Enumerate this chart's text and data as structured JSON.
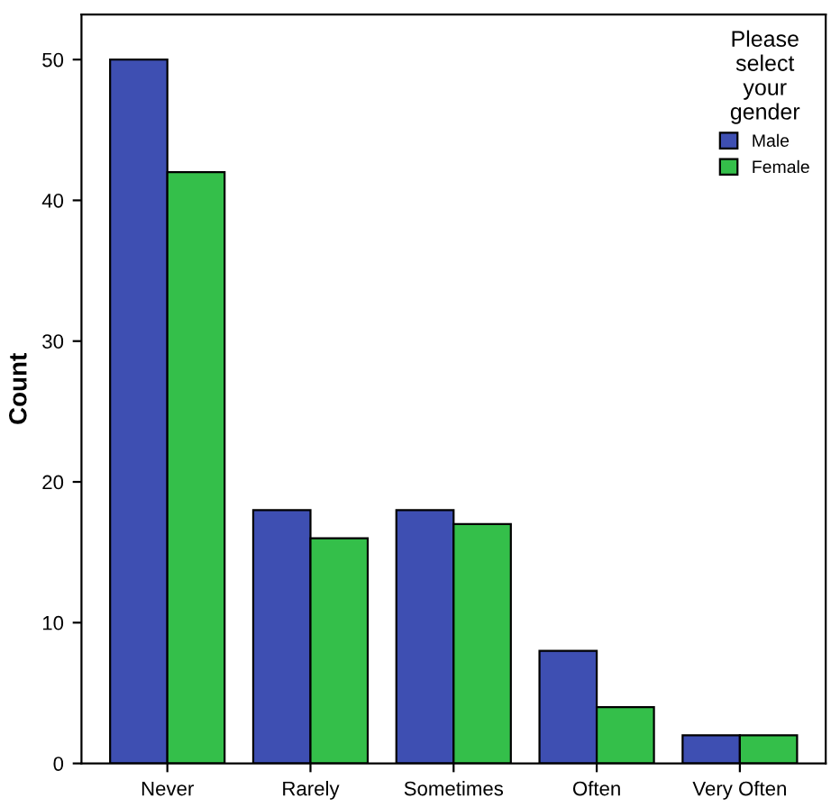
{
  "chart_data": {
    "type": "bar",
    "ylabel": "Count",
    "categories": [
      "Never",
      "Rarely",
      "Sometimes",
      "Often",
      "Very Often"
    ],
    "series": [
      {
        "name": "Male",
        "color": "#3e4fb2",
        "values": [
          50,
          18,
          18,
          8,
          2
        ]
      },
      {
        "name": "Female",
        "color": "#34bf4a",
        "values": [
          42,
          16,
          17,
          4,
          2
        ]
      }
    ],
    "ylim": [
      0,
      53.2
    ],
    "yticks": [
      0,
      10,
      20,
      30,
      40,
      50
    ],
    "grid": false,
    "legend": "top right",
    "legend_title": "Please\nselect\nyour\ngender"
  }
}
